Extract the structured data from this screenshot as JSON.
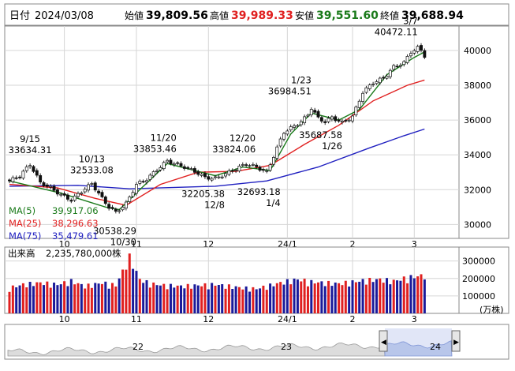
{
  "header": {
    "date_label": "日付",
    "date": "2024/03/08",
    "open_label": "始値",
    "open": "39,809.56",
    "high_label": "高値",
    "high": "39,989.33",
    "low_label": "安値",
    "low": "39,551.60",
    "close_label": "終値",
    "close": "39,688.94"
  },
  "colors": {
    "up": "#ffffff",
    "down": "#111111",
    "ma5": "#1a7a1a",
    "ma25": "#e02020",
    "ma75": "#2020c0",
    "vol_up": "#e02020",
    "vol_down": "#1a1a9a",
    "high_text": "#e02020",
    "low_text": "#1a7a1a",
    "overview_fill": "#b8c6ea"
  },
  "legend": [
    {
      "name": "MA(5)",
      "value": "39,917.06"
    },
    {
      "name": "MA(25)",
      "value": "38,296.63"
    },
    {
      "name": "MA(75)",
      "value": "35,479.61"
    }
  ],
  "volume": {
    "label": "出来高",
    "value": "2,235,780,000株",
    "yticks": [
      "300000",
      "200000",
      "100000"
    ],
    "unit": "(万株)"
  },
  "overview": {
    "labels": [
      "22",
      "23",
      "24"
    ],
    "left_handle": "◀",
    "right_handle": "▶"
  },
  "chart_data": [
    {
      "type": "candlestick",
      "title": "",
      "x_tick_labels": [
        "10",
        "11",
        "12",
        "24/1",
        "2",
        "3"
      ],
      "y_tick_labels": [
        "40000",
        "38000",
        "36000",
        "34000",
        "32000",
        "30000"
      ],
      "ylim": [
        29200,
        41400
      ],
      "grid": true,
      "legend_position": "bottom-left",
      "annotations": [
        {
          "date": "9/15",
          "value": "33634.31",
          "kind": "high"
        },
        {
          "date": "10/13",
          "value": "32533.08",
          "kind": "high"
        },
        {
          "date": "10/30",
          "value": "30538.29",
          "kind": "low"
        },
        {
          "date": "11/20",
          "value": "33853.46",
          "kind": "high"
        },
        {
          "date": "12/8",
          "value": "32205.38",
          "kind": "low"
        },
        {
          "date": "12/20",
          "value": "33824.06",
          "kind": "high"
        },
        {
          "date": "1/4",
          "value": "32693.18",
          "kind": "low"
        },
        {
          "date": "1/23",
          "value": "36984.51",
          "kind": "high"
        },
        {
          "date": "1/26",
          "value": "35687.58",
          "kind": "low"
        },
        {
          "date": "3/7",
          "value": "40472.11",
          "kind": "high"
        }
      ],
      "anchors": [
        [
          0,
          32500
        ],
        [
          3,
          32800
        ],
        [
          6,
          33450
        ],
        [
          9,
          32400
        ],
        [
          12,
          32100
        ],
        [
          15,
          31700
        ],
        [
          18,
          31400
        ],
        [
          21,
          31900
        ],
        [
          24,
          32350
        ],
        [
          27,
          31500
        ],
        [
          29,
          31000
        ],
        [
          31,
          30700
        ],
        [
          34,
          31200
        ],
        [
          37,
          32300
        ],
        [
          40,
          32600
        ],
        [
          43,
          33150
        ],
        [
          46,
          33650
        ],
        [
          48,
          33500
        ],
        [
          51,
          33300
        ],
        [
          54,
          33050
        ],
        [
          57,
          32700
        ],
        [
          60,
          32650
        ],
        [
          63,
          32900
        ],
        [
          66,
          33200
        ],
        [
          69,
          33480
        ],
        [
          72,
          33300
        ],
        [
          75,
          33000
        ],
        [
          78,
          34400
        ],
        [
          80,
          35300
        ],
        [
          83,
          35650
        ],
        [
          85,
          35900
        ],
        [
          87,
          36300
        ],
        [
          88,
          36700
        ],
        [
          90,
          36100
        ],
        [
          92,
          35900
        ],
        [
          94,
          36150
        ],
        [
          97,
          35850
        ],
        [
          100,
          36200
        ],
        [
          103,
          37600
        ],
        [
          106,
          38150
        ],
        [
          109,
          38400
        ],
        [
          112,
          39050
        ],
        [
          115,
          39300
        ],
        [
          117,
          39900
        ],
        [
          119,
          40150
        ],
        [
          120,
          39990
        ],
        [
          121,
          39689
        ]
      ],
      "ma5_points": [
        [
          0,
          32500
        ],
        [
          15,
          31800
        ],
        [
          28,
          31000
        ],
        [
          32,
          30850
        ],
        [
          38,
          32000
        ],
        [
          46,
          33500
        ],
        [
          60,
          32800
        ],
        [
          68,
          33300
        ],
        [
          76,
          33100
        ],
        [
          82,
          35200
        ],
        [
          88,
          36400
        ],
        [
          96,
          36000
        ],
        [
          102,
          36600
        ],
        [
          110,
          38600
        ],
        [
          118,
          39600
        ],
        [
          121,
          39917
        ]
      ],
      "ma25_points": [
        [
          0,
          32300
        ],
        [
          14,
          32100
        ],
        [
          25,
          31500
        ],
        [
          34,
          31100
        ],
        [
          44,
          32300
        ],
        [
          55,
          33000
        ],
        [
          66,
          33050
        ],
        [
          76,
          33400
        ],
        [
          86,
          34600
        ],
        [
          96,
          35700
        ],
        [
          106,
          37100
        ],
        [
          116,
          38000
        ],
        [
          121,
          38297
        ]
      ],
      "ma75_points": [
        [
          0,
          32200
        ],
        [
          20,
          32250
        ],
        [
          35,
          32050
        ],
        [
          60,
          32200
        ],
        [
          75,
          32500
        ],
        [
          90,
          33300
        ],
        [
          105,
          34400
        ],
        [
          115,
          35100
        ],
        [
          121,
          35480
        ]
      ]
    },
    {
      "type": "bar",
      "title": "",
      "ylabel": "出来高",
      "unit": "万株",
      "ylim": [
        0,
        380000
      ],
      "y_tick_labels": [
        "300000",
        "200000",
        "100000"
      ],
      "x_tick_labels": [
        "10",
        "11",
        "12",
        "24/1",
        "2",
        "3"
      ],
      "anchors": [
        [
          0,
          150000
        ],
        [
          4,
          170000
        ],
        [
          9,
          180000
        ],
        [
          14,
          170000
        ],
        [
          18,
          190000
        ],
        [
          22,
          160000
        ],
        [
          27,
          180000
        ],
        [
          31,
          165000
        ],
        [
          35,
          330000
        ],
        [
          38,
          200000
        ],
        [
          41,
          175000
        ],
        [
          45,
          165000
        ],
        [
          50,
          160000
        ],
        [
          55,
          165000
        ],
        [
          60,
          170000
        ],
        [
          64,
          160000
        ],
        [
          68,
          150000
        ],
        [
          72,
          145000
        ],
        [
          76,
          165000
        ],
        [
          80,
          185000
        ],
        [
          84,
          200000
        ],
        [
          88,
          185000
        ],
        [
          92,
          180000
        ],
        [
          96,
          175000
        ],
        [
          100,
          185000
        ],
        [
          104,
          195000
        ],
        [
          108,
          200000
        ],
        [
          112,
          190000
        ],
        [
          116,
          210000
        ],
        [
          121,
          224000
        ]
      ]
    }
  ]
}
